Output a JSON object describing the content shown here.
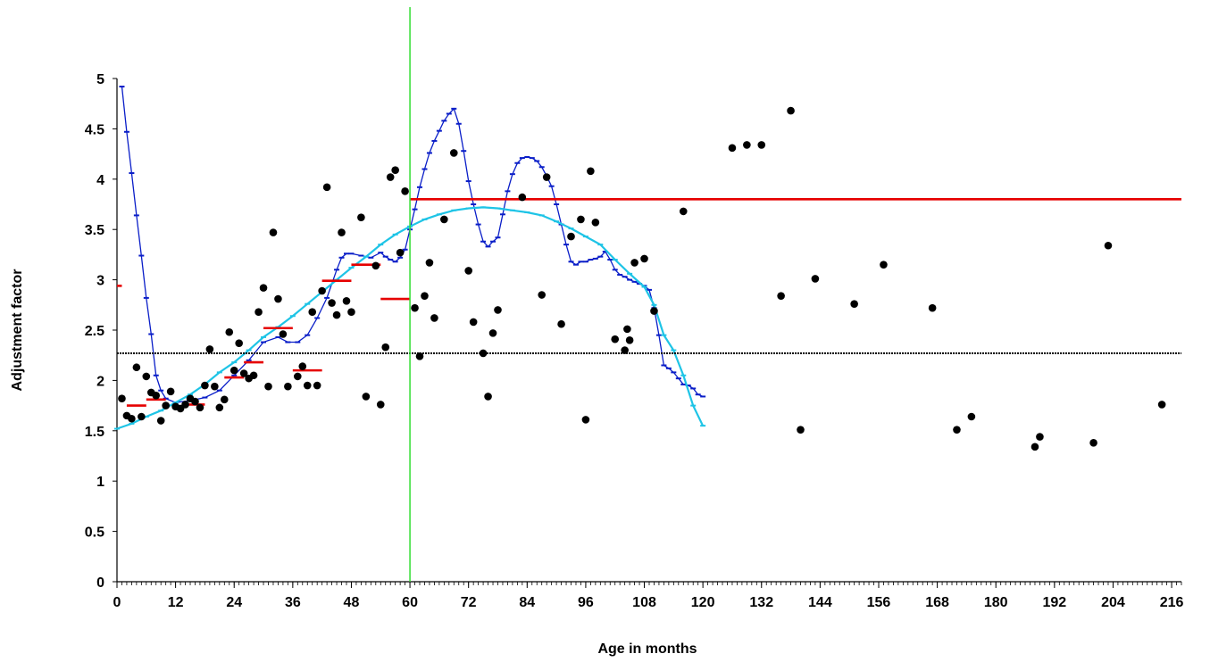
{
  "chart_data": {
    "type": "scatter",
    "title": "",
    "xlabel": "Age in months",
    "ylabel": "Adjustment factor",
    "xlim": [
      0,
      218
    ],
    "ylim": [
      0,
      5
    ],
    "x_ticks": [
      "0",
      "12",
      "24",
      "36",
      "48",
      "60",
      "72",
      "84",
      "96",
      "108",
      "120",
      "132",
      "144",
      "156",
      "168",
      "180",
      "192",
      "204",
      "216"
    ],
    "y_ticks": [
      "0",
      "0.5",
      "1",
      "1.5",
      "2",
      "2.5",
      "3",
      "3.5",
      "4",
      "4.5",
      "5"
    ],
    "grid": false,
    "legend": "none",
    "colors": {
      "points": "#000000",
      "blue": "#0a1ec8",
      "cyan": "#1ec4e6",
      "red": "#e60000",
      "reference": "#000000",
      "vertical": "#33dd33"
    },
    "series": [
      {
        "kind": "points",
        "points": [
          [
            1,
            1.82
          ],
          [
            2,
            1.65
          ],
          [
            3,
            1.62
          ],
          [
            4,
            2.13
          ],
          [
            5,
            1.64
          ],
          [
            6,
            2.04
          ],
          [
            7,
            1.88
          ],
          [
            8,
            1.85
          ],
          [
            9,
            1.6
          ],
          [
            10,
            1.75
          ],
          [
            11,
            1.89
          ],
          [
            12,
            1.74
          ],
          [
            13,
            1.72
          ],
          [
            14,
            1.76
          ],
          [
            15,
            1.82
          ],
          [
            16,
            1.79
          ],
          [
            17,
            1.73
          ],
          [
            18,
            1.95
          ],
          [
            19,
            2.31
          ],
          [
            20,
            1.94
          ],
          [
            21,
            1.73
          ],
          [
            22,
            1.81
          ],
          [
            23,
            2.48
          ],
          [
            24,
            2.1
          ],
          [
            25,
            2.37
          ],
          [
            26,
            2.07
          ],
          [
            27,
            2.02
          ],
          [
            28,
            2.05
          ],
          [
            29,
            2.68
          ],
          [
            30,
            2.92
          ],
          [
            31,
            1.94
          ],
          [
            32,
            3.47
          ],
          [
            33,
            2.81
          ],
          [
            34,
            2.46
          ],
          [
            35,
            1.94
          ],
          [
            37,
            2.04
          ],
          [
            38,
            2.14
          ],
          [
            39,
            1.95
          ],
          [
            40,
            2.68
          ],
          [
            41,
            1.95
          ],
          [
            42,
            2.89
          ],
          [
            43,
            3.92
          ],
          [
            44,
            2.77
          ],
          [
            45,
            2.65
          ],
          [
            46,
            3.47
          ],
          [
            47,
            2.79
          ],
          [
            48,
            2.68
          ],
          [
            50,
            3.62
          ],
          [
            51,
            1.84
          ],
          [
            53,
            3.14
          ],
          [
            54,
            1.76
          ],
          [
            55,
            2.33
          ],
          [
            56,
            4.02
          ],
          [
            57,
            4.09
          ],
          [
            58,
            3.27
          ],
          [
            59,
            3.88
          ],
          [
            61,
            2.72
          ],
          [
            62,
            2.24
          ],
          [
            63,
            2.84
          ],
          [
            64,
            3.17
          ],
          [
            65,
            2.62
          ],
          [
            67,
            3.6
          ],
          [
            69,
            4.26
          ],
          [
            72,
            3.09
          ],
          [
            73,
            2.58
          ],
          [
            75,
            2.27
          ],
          [
            76,
            1.84
          ],
          [
            77,
            2.47
          ],
          [
            78,
            2.7
          ],
          [
            83,
            3.82
          ],
          [
            87,
            2.85
          ],
          [
            88,
            4.02
          ],
          [
            91,
            2.56
          ],
          [
            93,
            3.43
          ],
          [
            95,
            3.6
          ],
          [
            96,
            1.61
          ],
          [
            97,
            4.08
          ],
          [
            98,
            3.57
          ],
          [
            102,
            2.41
          ],
          [
            104,
            2.3
          ],
          [
            104.5,
            2.51
          ],
          [
            105,
            2.4
          ],
          [
            106,
            3.17
          ],
          [
            108,
            3.21
          ],
          [
            110,
            2.69
          ],
          [
            116,
            3.68
          ],
          [
            126,
            4.31
          ],
          [
            129,
            4.34
          ],
          [
            132,
            4.34
          ],
          [
            136,
            2.84
          ],
          [
            138,
            4.68
          ],
          [
            140,
            1.51
          ],
          [
            143,
            3.01
          ],
          [
            151,
            2.76
          ],
          [
            157,
            3.15
          ],
          [
            167,
            2.72
          ],
          [
            172,
            1.51
          ],
          [
            175,
            1.64
          ],
          [
            188,
            1.34
          ],
          [
            189,
            1.44
          ],
          [
            200,
            1.38
          ],
          [
            203,
            3.34
          ],
          [
            214,
            1.76
          ]
        ]
      },
      {
        "kind": "blue-smooth",
        "points": [
          [
            1,
            4.92
          ],
          [
            2,
            4.47
          ],
          [
            3,
            4.06
          ],
          [
            4,
            3.64
          ],
          [
            5,
            3.24
          ],
          [
            6,
            2.82
          ],
          [
            7,
            2.46
          ],
          [
            8,
            2.05
          ],
          [
            9,
            1.9
          ],
          [
            10,
            1.82
          ],
          [
            12,
            1.78
          ],
          [
            15,
            1.8
          ],
          [
            18,
            1.83
          ],
          [
            21,
            1.9
          ],
          [
            24,
            2.05
          ],
          [
            27,
            2.2
          ],
          [
            30,
            2.38
          ],
          [
            33,
            2.43
          ],
          [
            35,
            2.38
          ],
          [
            37,
            2.38
          ],
          [
            39,
            2.45
          ],
          [
            41,
            2.62
          ],
          [
            43,
            2.82
          ],
          [
            45,
            3.1
          ],
          [
            46,
            3.22
          ],
          [
            47,
            3.26
          ],
          [
            48,
            3.26
          ],
          [
            50,
            3.24
          ],
          [
            52,
            3.22
          ],
          [
            54,
            3.27
          ],
          [
            55,
            3.23
          ],
          [
            56,
            3.2
          ],
          [
            57,
            3.18
          ],
          [
            58,
            3.22
          ],
          [
            59,
            3.3
          ],
          [
            60,
            3.5
          ],
          [
            61,
            3.7
          ],
          [
            62,
            3.92
          ],
          [
            63,
            4.1
          ],
          [
            64,
            4.26
          ],
          [
            65,
            4.38
          ],
          [
            66,
            4.48
          ],
          [
            67,
            4.58
          ],
          [
            68,
            4.65
          ],
          [
            69,
            4.7
          ],
          [
            70,
            4.55
          ],
          [
            71,
            4.28
          ],
          [
            72,
            3.98
          ],
          [
            73,
            3.75
          ],
          [
            74,
            3.55
          ],
          [
            75,
            3.38
          ],
          [
            76,
            3.33
          ],
          [
            77,
            3.38
          ],
          [
            78,
            3.42
          ],
          [
            79,
            3.65
          ],
          [
            80,
            3.88
          ],
          [
            81,
            4.05
          ],
          [
            82,
            4.16
          ],
          [
            83,
            4.21
          ],
          [
            84,
            4.22
          ],
          [
            85,
            4.21
          ],
          [
            86,
            4.18
          ],
          [
            87,
            4.12
          ],
          [
            88,
            4.03
          ],
          [
            89,
            3.93
          ],
          [
            90,
            3.75
          ],
          [
            91,
            3.55
          ],
          [
            92,
            3.35
          ],
          [
            93,
            3.18
          ],
          [
            94,
            3.15
          ],
          [
            95,
            3.18
          ],
          [
            96,
            3.18
          ],
          [
            97,
            3.2
          ],
          [
            98,
            3.21
          ],
          [
            99,
            3.23
          ],
          [
            100,
            3.28
          ],
          [
            101,
            3.2
          ],
          [
            102,
            3.1
          ],
          [
            103,
            3.05
          ],
          [
            104,
            3.03
          ],
          [
            105,
            3.0
          ],
          [
            106,
            2.98
          ],
          [
            107,
            2.96
          ],
          [
            108,
            2.94
          ],
          [
            109,
            2.9
          ],
          [
            110,
            2.72
          ],
          [
            111,
            2.45
          ],
          [
            112,
            2.15
          ],
          [
            113,
            2.12
          ],
          [
            114,
            2.08
          ],
          [
            115,
            2.02
          ],
          [
            116,
            1.96
          ],
          [
            117,
            1.95
          ],
          [
            118,
            1.92
          ],
          [
            119,
            1.86
          ],
          [
            120,
            1.84
          ]
        ]
      },
      {
        "kind": "cyan-smooth",
        "points": [
          [
            0,
            1.52
          ],
          [
            3,
            1.57
          ],
          [
            6,
            1.64
          ],
          [
            9,
            1.7
          ],
          [
            12,
            1.78
          ],
          [
            15,
            1.86
          ],
          [
            18,
            1.96
          ],
          [
            21,
            2.08
          ],
          [
            24,
            2.18
          ],
          [
            27,
            2.3
          ],
          [
            30,
            2.43
          ],
          [
            33,
            2.53
          ],
          [
            36,
            2.64
          ],
          [
            39,
            2.76
          ],
          [
            42,
            2.88
          ],
          [
            45,
            3.0
          ],
          [
            48,
            3.12
          ],
          [
            51,
            3.23
          ],
          [
            54,
            3.35
          ],
          [
            57,
            3.45
          ],
          [
            60,
            3.53
          ],
          [
            63,
            3.6
          ],
          [
            66,
            3.65
          ],
          [
            69,
            3.69
          ],
          [
            72,
            3.71
          ],
          [
            75,
            3.72
          ],
          [
            78,
            3.71
          ],
          [
            81,
            3.69
          ],
          [
            84,
            3.67
          ],
          [
            87,
            3.64
          ],
          [
            90,
            3.58
          ],
          [
            93,
            3.51
          ],
          [
            96,
            3.43
          ],
          [
            99,
            3.35
          ],
          [
            102,
            3.2
          ],
          [
            105,
            3.06
          ],
          [
            108,
            2.93
          ],
          [
            110,
            2.75
          ],
          [
            112,
            2.45
          ],
          [
            114,
            2.3
          ],
          [
            116,
            2.05
          ],
          [
            118,
            1.75
          ],
          [
            120,
            1.55
          ]
        ]
      },
      {
        "kind": "red-steps",
        "segments": [
          [
            0,
            2.94,
            1
          ],
          [
            2,
            1.75,
            6
          ],
          [
            6,
            1.81,
            10
          ],
          [
            14,
            1.76,
            18
          ],
          [
            22,
            2.03,
            26
          ],
          [
            26,
            2.18,
            30
          ],
          [
            30,
            2.52,
            36
          ],
          [
            36,
            2.1,
            42
          ],
          [
            42,
            2.99,
            48
          ],
          [
            48,
            3.15,
            54
          ],
          [
            54,
            2.81,
            60
          ],
          [
            60,
            3.8,
            218
          ]
        ]
      },
      {
        "kind": "reference-line",
        "y": 2.27
      },
      {
        "kind": "vertical-line",
        "x": 60
      }
    ]
  }
}
